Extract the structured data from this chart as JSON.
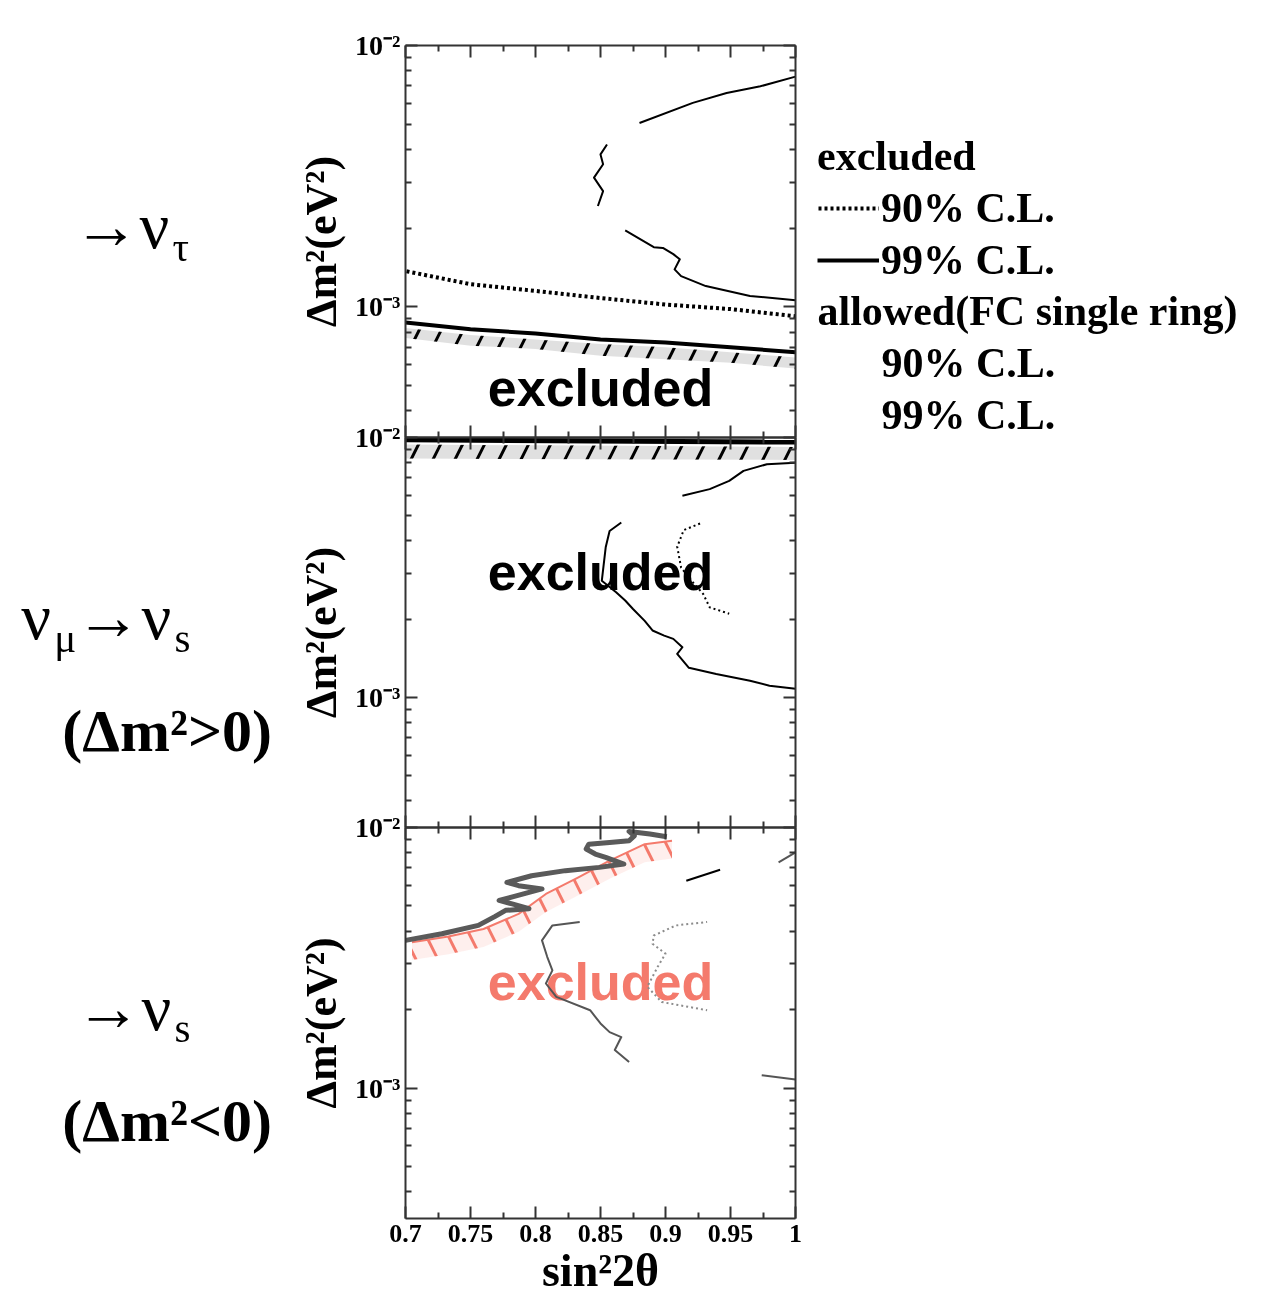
{
  "chart_data": [
    {
      "type": "line",
      "title": "→ν$_{τ}$",
      "ylabel": "Δm²(eV²)",
      "log": true,
      "legend": "right",
      "legend_title": "excluded",
      "tick_labels": "y",
      "xlim": [
        0.7,
        1
      ],
      "ylim": [
        0.000316,
        0.01
      ],
      "xticks": [
        0.7,
        {
          "value": 0.725,
          "label": null
        },
        0.75,
        {
          "value": 0.775,
          "label": null
        },
        0.8,
        {
          "value": 0.825,
          "label": null
        },
        0.85,
        {
          "value": 0.875,
          "label": null
        },
        0.9,
        {
          "value": 0.925,
          "label": null
        },
        0.95,
        {
          "value": 0.975,
          "label": null
        },
        1
      ],
      "yticks": [
        {
          "value": 0.0004,
          "label": null
        },
        {
          "value": 0.0005,
          "label": null
        },
        {
          "value": 0.0006,
          "label": null
        },
        {
          "value": 0.0007,
          "label": null
        },
        {
          "value": 0.0008,
          "label": null
        },
        {
          "value": 0.0009,
          "label": null
        },
        {
          "value": 0.001,
          "label": "10⁻³"
        },
        {
          "value": 0.002,
          "label": null
        },
        {
          "value": 0.003,
          "label": null
        },
        {
          "value": 0.004,
          "label": null
        },
        {
          "value": 0.005,
          "label": null
        },
        {
          "value": 0.006,
          "label": null
        },
        {
          "value": 0.007,
          "label": null
        },
        {
          "value": 0.008,
          "label": null
        },
        {
          "value": 0.009,
          "label": null
        },
        {
          "value": 0.01,
          "label": "10⁻²"
        }
      ],
      "series": [
        {
          "name": "90% C.L.",
          "color": "#000000",
          "line_style": "dotted",
          "x": [
            0.7,
            0.75,
            0.8,
            0.85,
            0.9,
            0.95,
            1
          ],
          "values": [
            0.00137,
            0.00122,
            0.00115,
            0.00108,
            0.00102,
            0.00098,
            0.00092
          ]
        },
        {
          "name": "99% C.L.",
          "color": "#000000",
          "line_style": "solid",
          "x": [
            0.7,
            0.75,
            0.8,
            0.85,
            0.9,
            0.95,
            1
          ],
          "values": [
            0.00087,
            0.00082,
            0.00079,
            0.00075,
            0.00073,
            0.0007,
            0.00067
          ],
          "upper": [
            0.00083,
            0.00078,
            0.00075,
            0.00072,
            0.0007,
            0.00067,
            0.00064
          ],
          "lower": [
            0.00076,
            0.00071,
            0.00069,
            0.00065,
            0.00063,
            0.00061,
            0.00058
          ]
        },
        {
          "color": "#000000",
          "line_style": "solid",
          "x": [
            0.88,
            0.921,
            0.947,
            0.973,
            1
          ],
          "values": [
            0.00505,
            0.00603,
            0.00658,
            0.00698,
            0.0076
          ]
        },
        {
          "color": "#000000",
          "line_style": "solid",
          "x": [
            0.855,
            0.85,
            0.852,
            0.845,
            0.852,
            0.848
          ],
          "values": [
            0.00418,
            0.00383,
            0.00351,
            0.00312,
            0.00277,
            0.00243
          ]
        },
        {
          "color": "#000000",
          "line_style": "solid",
          "x": [
            0.869,
            0.891,
            0.898,
            0.906,
            0.911,
            0.907,
            0.912,
            0.931,
            0.965,
            1
          ],
          "values": [
            0.00196,
            0.00169,
            0.00168,
            0.00159,
            0.00152,
            0.00139,
            0.00131,
            0.0012,
            0.0011,
            0.00106
          ]
        }
      ],
      "annotations": [
        "excluded",
        "allowed(FC single ring)",
        "90% C.L.",
        "99% C.L."
      ]
    },
    {
      "type": "line",
      "title": "ν$_{μ}$→ν$_{s}$",
      "subtitle": "(Δm²>0)",
      "ylabel": "Δm²(eV²)",
      "log": true,
      "tick_labels": "y",
      "xlim": [
        0.7,
        1
      ],
      "ylim": [
        0.000316,
        0.01
      ],
      "xticks": [
        0.7,
        {
          "value": 0.725,
          "label": null
        },
        0.75,
        {
          "value": 0.775,
          "label": null
        },
        0.8,
        {
          "value": 0.825,
          "label": null
        },
        0.85,
        {
          "value": 0.875,
          "label": null
        },
        0.9,
        {
          "value": 0.925,
          "label": null
        },
        0.95,
        {
          "value": 0.975,
          "label": null
        },
        1
      ],
      "yticks": [
        {
          "value": 0.0004,
          "label": null
        },
        {
          "value": 0.0005,
          "label": null
        },
        {
          "value": 0.0006,
          "label": null
        },
        {
          "value": 0.0007,
          "label": null
        },
        {
          "value": 0.0008,
          "label": null
        },
        {
          "value": 0.0009,
          "label": null
        },
        {
          "value": 0.001,
          "label": "10⁻³"
        },
        {
          "value": 0.002,
          "label": null
        },
        {
          "value": 0.003,
          "label": null
        },
        {
          "value": 0.004,
          "label": null
        },
        {
          "value": 0.005,
          "label": null
        },
        {
          "value": 0.006,
          "label": null
        },
        {
          "value": 0.007,
          "label": null
        },
        {
          "value": 0.008,
          "label": null
        },
        {
          "value": 0.009,
          "label": null
        },
        {
          "value": 0.01,
          "label": "10⁻²"
        }
      ],
      "series": [
        {
          "color": "#000000",
          "line_style": "solid",
          "x": [
            0.7,
            1
          ],
          "values": [
            0.0098,
            0.0096
          ],
          "upper": [
            0.0094,
            0.0092
          ],
          "lower": [
            0.0083,
            0.0082
          ]
        },
        {
          "color": "#000000",
          "line_style": "solid",
          "x": [
            0.913,
            0.934,
            0.949,
            0.96,
            0.978,
            1
          ],
          "values": [
            0.00597,
            0.00633,
            0.00681,
            0.00744,
            0.00789,
            0.008
          ]
        },
        {
          "color": "#000000",
          "line_style": "solid",
          "x": [
            0.866,
            0.857,
            0.854,
            0.851,
            0.862,
            0.869,
            0.875,
            0.884,
            0.89,
            0.899,
            0.906,
            0.913,
            0.909,
            0.918,
            0.939,
            0.965,
            0.98,
            1
          ],
          "values": [
            0.00471,
            0.00437,
            0.00378,
            0.00281,
            0.00254,
            0.00236,
            0.00219,
            0.00197,
            0.00181,
            0.00173,
            0.00168,
            0.00156,
            0.00147,
            0.0013,
            0.00123,
            0.00116,
            0.00111,
            0.00108
          ]
        },
        {
          "color": "#000000",
          "line_style": "dotted",
          "x": [
            0.928,
            0.914,
            0.909,
            0.912,
            0.92,
            0.929,
            0.934,
            0.949
          ],
          "values": [
            0.0047,
            0.0044,
            0.0038,
            0.00316,
            0.00281,
            0.0025,
            0.00222,
            0.0021
          ]
        }
      ],
      "annotations": [
        "excluded"
      ]
    },
    {
      "type": "line",
      "title": "→ν$_{s}$",
      "subtitle": "(Δm²<0)",
      "ylabel": "Δm²(eV²)",
      "xlabel": "sin²2θ",
      "log": true,
      "xlim": [
        0.7,
        1
      ],
      "ylim": [
        0.000316,
        0.01
      ],
      "xticks": [
        0.7,
        {
          "value": 0.725,
          "label": null
        },
        0.75,
        {
          "value": 0.775,
          "label": null
        },
        0.8,
        {
          "value": 0.825,
          "label": null
        },
        0.85,
        {
          "value": 0.875,
          "label": null
        },
        0.9,
        {
          "value": 0.925,
          "label": null
        },
        0.95,
        {
          "value": 0.975,
          "label": null
        },
        1
      ],
      "yticks": [
        {
          "value": 0.0004,
          "label": null
        },
        {
          "value": 0.0005,
          "label": null
        },
        {
          "value": 0.0006,
          "label": null
        },
        {
          "value": 0.0007,
          "label": null
        },
        {
          "value": 0.0008,
          "label": null
        },
        {
          "value": 0.0009,
          "label": null
        },
        {
          "value": 0.001,
          "label": "10⁻³"
        },
        {
          "value": 0.002,
          "label": null
        },
        {
          "value": 0.003,
          "label": null
        },
        {
          "value": 0.004,
          "label": null
        },
        {
          "value": 0.005,
          "label": null
        },
        {
          "value": 0.006,
          "label": null
        },
        {
          "value": 0.007,
          "label": null
        },
        {
          "value": 0.008,
          "label": null
        },
        {
          "value": 0.009,
          "label": null
        },
        {
          "value": 0.01,
          "label": "10⁻²"
        }
      ],
      "series": [
        {
          "color": "#f47a6c",
          "line_style": "solid",
          "x": [
            0.705,
            0.733,
            0.76,
            0.787,
            0.808,
            0.833,
            0.857,
            0.884,
            0.905
          ],
          "values": [
            0.00363,
            0.00382,
            0.00408,
            0.00466,
            0.00556,
            0.00644,
            0.00746,
            0.00863,
            0.0089
          ],
          "upper": [
            0.00363,
            0.00382,
            0.00408,
            0.00466,
            0.00556,
            0.00644,
            0.00746,
            0.00863,
            0.0089
          ],
          "lower": [
            0.0031,
            0.00326,
            0.00348,
            0.00398,
            0.00474,
            0.00549,
            0.00636,
            0.00736,
            0.0076
          ]
        },
        {
          "color": "#5a5a5a",
          "line_style": "solid",
          "x": [
            0.7,
            0.728,
            0.756,
            0.769,
            0.777,
            0.795,
            0.782,
            0.772,
            0.783,
            0.805,
            0.787,
            0.778,
            0.797,
            0.823,
            0.849,
            0.868,
            0.854,
            0.846,
            0.839,
            0.841,
            0.857,
            0.872,
            0.876,
            0.872,
            0.888,
            0.901
          ],
          "values": [
            0.00369,
            0.00391,
            0.00421,
            0.00456,
            0.00481,
            0.00488,
            0.00509,
            0.00525,
            0.00543,
            0.00581,
            0.00598,
            0.00616,
            0.00653,
            0.00683,
            0.00703,
            0.00724,
            0.00768,
            0.00791,
            0.00827,
            0.00863,
            0.00876,
            0.00889,
            0.00929,
            0.00966,
            0.00944,
            0.00921
          ]
        },
        {
          "color": "#555555",
          "line_style": "solid",
          "x": [
            0.987,
            1
          ],
          "values": [
            0.00735,
            0.00802
          ]
        },
        {
          "color": "#000000",
          "line_style": "solid",
          "x": [
            0.916,
            0.942
          ],
          "values": [
            0.00625,
            0.00688
          ]
        },
        {
          "color": "#555555",
          "line_style": "solid",
          "x": [
            0.834,
            0.813,
            0.805,
            0.809,
            0.813,
            0.808,
            0.816,
            0.842,
            0.85,
            0.857,
            0.866,
            0.861,
            0.872
          ],
          "values": [
            0.00434,
            0.00421,
            0.00369,
            0.00319,
            0.00283,
            0.00252,
            0.00224,
            0.00199,
            0.00177,
            0.00164,
            0.00157,
            0.0014,
            0.00126
          ]
        },
        {
          "color": "#555555",
          "line_style": "solid",
          "x": [
            0.974,
            1
          ],
          "values": [
            0.00112,
            0.00108
          ]
        },
        {
          "color": "#8c8c8c",
          "line_style": "dotted",
          "x": [
            0.932,
            0.908,
            0.891,
            0.89,
            0.9,
            0.894,
            0.886,
            0.897,
            0.932
          ],
          "values": [
            0.00434,
            0.00421,
            0.00385,
            0.00358,
            0.00328,
            0.00292,
            0.00245,
            0.00214,
            0.00199
          ]
        }
      ],
      "annotations": [
        "excluded"
      ]
    }
  ]
}
